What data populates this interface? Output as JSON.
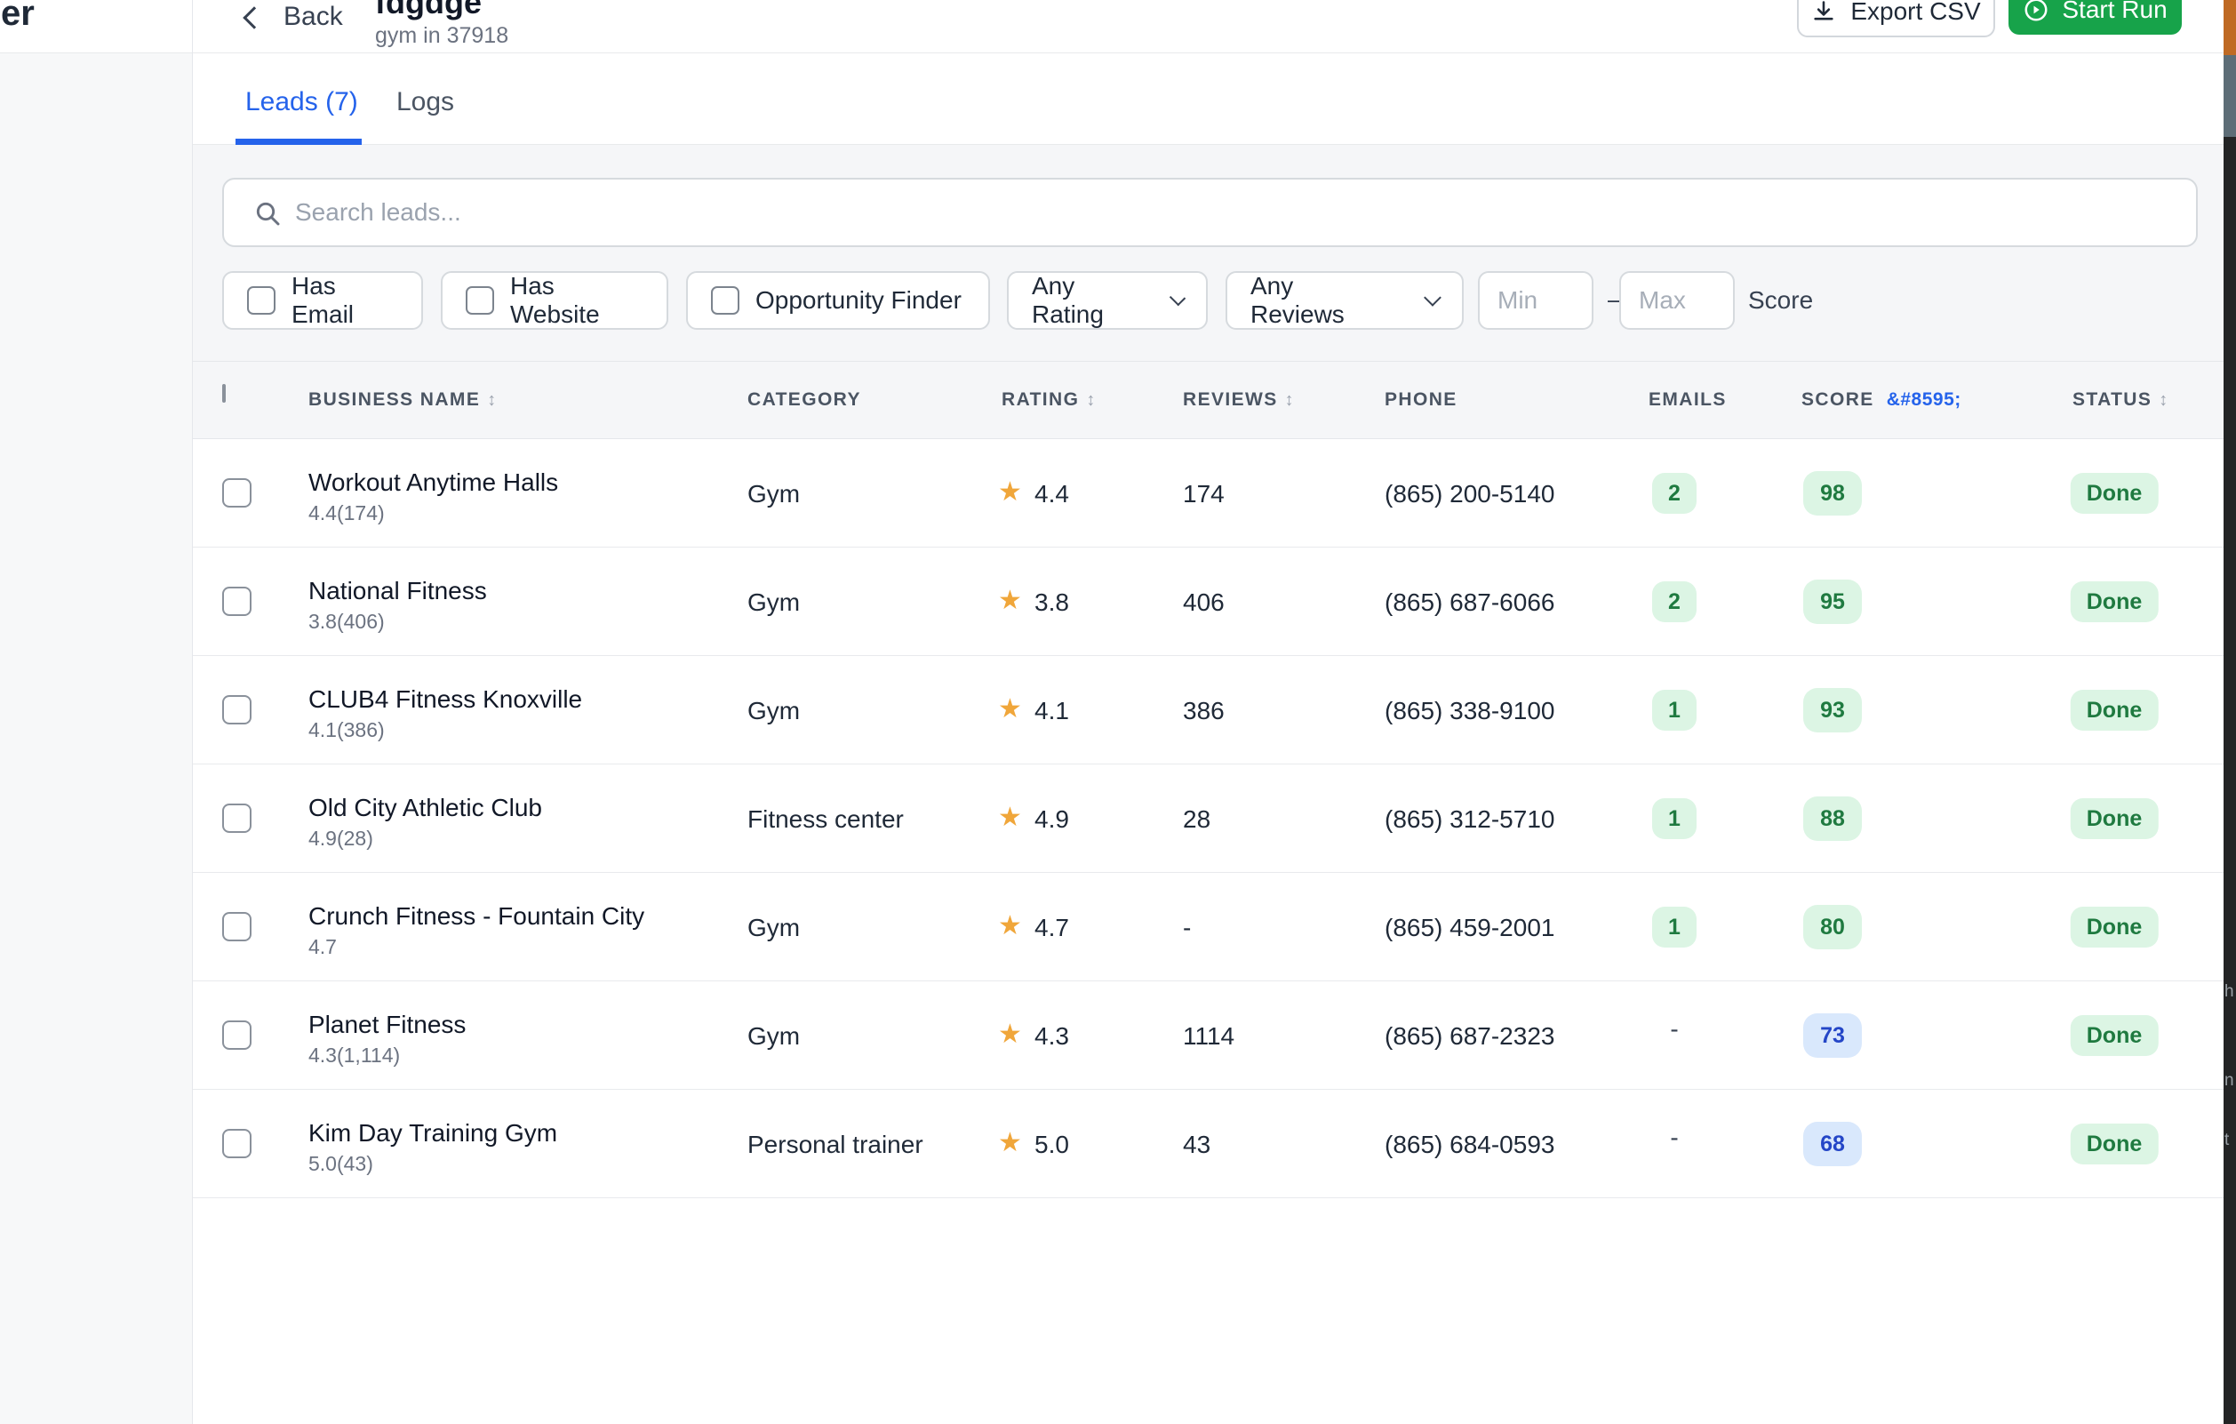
{
  "desktop": {
    "sidebar_title_fragment": "er",
    "right_strip_letters": [
      "h",
      "n",
      "t"
    ]
  },
  "header": {
    "back_label": "Back",
    "title": "fdgdge",
    "subtitle": "gym in 37918",
    "export_csv_label": "Export CSV",
    "start_run_label": "Start Run"
  },
  "tabs": [
    {
      "label": "Leads (7)",
      "active": true
    },
    {
      "label": "Logs",
      "active": false
    }
  ],
  "search": {
    "placeholder": "Search leads..."
  },
  "filters": {
    "checkboxes": [
      {
        "label": "Has Email",
        "checked": false
      },
      {
        "label": "Has Website",
        "checked": false
      },
      {
        "label": "Opportunity Finder",
        "checked": false
      }
    ],
    "rating_select": "Any Rating",
    "reviews_select": "Any Reviews",
    "min_placeholder": "Min",
    "max_placeholder": "Max",
    "range_separator": "–",
    "score_label": "Score"
  },
  "table": {
    "columns": [
      {
        "label": "BUSINESS NAME",
        "sortable": true
      },
      {
        "label": "CATEGORY",
        "sortable": false
      },
      {
        "label": "RATING",
        "sortable": true
      },
      {
        "label": "REVIEWS",
        "sortable": true
      },
      {
        "label": "PHONE",
        "sortable": false
      },
      {
        "label": "EMAILS",
        "sortable": false
      },
      {
        "label": "SCORE",
        "sortable": false
      },
      {
        "label": "STATUS",
        "sortable": true
      }
    ],
    "score_sort_entity": "&#8595;",
    "sort_icon_glyph": "↕",
    "star_glyph": "★",
    "rows": [
      {
        "name": "Workout Anytime Halls",
        "sub": "4.4(174)",
        "category": "Gym",
        "rating": "4.4",
        "reviews": "174",
        "phone": "(865) 200-5140",
        "emails": "2",
        "emails_style": "green",
        "score": "98",
        "score_style": "green",
        "status": "Done"
      },
      {
        "name": "National Fitness",
        "sub": "3.8(406)",
        "category": "Gym",
        "rating": "3.8",
        "reviews": "406",
        "phone": "(865) 687-6066",
        "emails": "2",
        "emails_style": "green",
        "score": "95",
        "score_style": "green",
        "status": "Done"
      },
      {
        "name": "CLUB4 Fitness Knoxville",
        "sub": "4.1(386)",
        "category": "Gym",
        "rating": "4.1",
        "reviews": "386",
        "phone": "(865) 338-9100",
        "emails": "1",
        "emails_style": "green",
        "score": "93",
        "score_style": "green",
        "status": "Done"
      },
      {
        "name": "Old City Athletic Club",
        "sub": "4.9(28)",
        "category": "Fitness center",
        "rating": "4.9",
        "reviews": "28",
        "phone": "(865) 312-5710",
        "emails": "1",
        "emails_style": "green",
        "score": "88",
        "score_style": "green",
        "status": "Done"
      },
      {
        "name": "Crunch Fitness - Fountain City",
        "sub": "4.7",
        "category": "Gym",
        "rating": "4.7",
        "reviews": "-",
        "phone": "(865) 459-2001",
        "emails": "1",
        "emails_style": "green",
        "score": "80",
        "score_style": "green",
        "status": "Done"
      },
      {
        "name": "Planet Fitness",
        "sub": "4.3(1,114)",
        "category": "Gym",
        "rating": "4.3",
        "reviews": "1114",
        "phone": "(865) 687-2323",
        "emails": "-",
        "emails_style": "dash",
        "score": "73",
        "score_style": "blue",
        "status": "Done"
      },
      {
        "name": "Kim Day Training Gym",
        "sub": "5.0(43)",
        "category": "Personal trainer",
        "rating": "5.0",
        "reviews": "43",
        "phone": "(865) 684-0593",
        "emails": "-",
        "emails_style": "dash",
        "score": "68",
        "score_style": "blue",
        "status": "Done"
      }
    ]
  },
  "colors": {
    "accent_blue": "#2563eb",
    "start_run_green": "#17a34a",
    "pill_green_bg": "#dcf5e4",
    "pill_green_text": "#1f7a40",
    "pill_blue_bg": "#d9e8fc",
    "pill_blue_text": "#2446c7",
    "star_amber": "#f0a63a"
  }
}
